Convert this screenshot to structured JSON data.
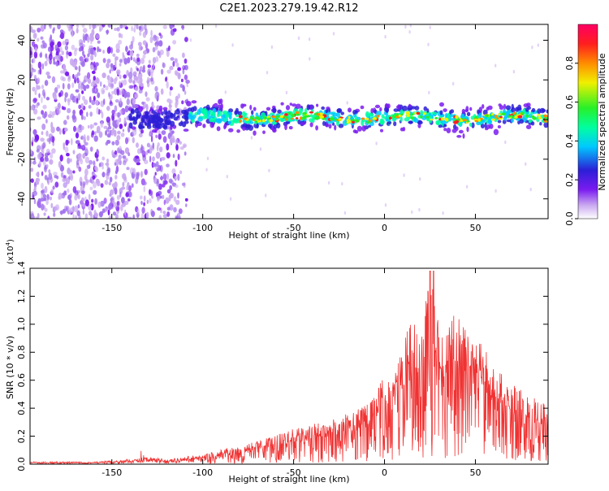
{
  "figure": {
    "title": "C2E1.2023.279.19.42.R12"
  },
  "chart_data": [
    {
      "type": "heatmap",
      "xlabel": "Height of straight line (km)",
      "ylabel": "Frequency (Hz)",
      "xlim": [
        -195,
        90
      ],
      "ylim": [
        -50,
        48
      ],
      "x_ticks": [
        -150,
        -100,
        -50,
        0,
        50
      ],
      "y_ticks": [
        -40,
        -20,
        0,
        20,
        40
      ],
      "grid": false,
      "colorbar": {
        "label": "Normalized spectral amplitude",
        "ticks": [
          0.0,
          0.2,
          0.4,
          0.6,
          0.8
        ],
        "range": [
          0,
          1
        ],
        "colormap": "rainbow (white → violet → blue → cyan → green → yellow → orange → red → magenta)",
        "colors": [
          "#ffffff",
          "#c9a8f0",
          "#7a1cf0",
          "#2b1fd6",
          "#00c8ff",
          "#00ffa0",
          "#28f028",
          "#f0f000",
          "#ff8c00",
          "#ff1e1e",
          "#ff0064"
        ]
      },
      "regions": [
        {
          "label": "scattered noise",
          "x_range": [
            -195,
            -108
          ],
          "frequency_range": [
            -50,
            48
          ]
        },
        {
          "label": "band onset",
          "x_range": [
            -140,
            -108
          ],
          "frequency_center": 0,
          "width_hz": 8
        },
        {
          "label": "signal band",
          "x_range": [
            -108,
            90
          ],
          "frequency_center": 1,
          "width_hz": 6,
          "peak_amplitude": 0.95
        }
      ]
    },
    {
      "type": "line",
      "xlabel": "Height of straight line (km)",
      "ylabel": "SNR (10 * v/v)",
      "y_multiplier": "(x10",
      "y_multiplier_exp": "4",
      "y_multiplier_close": ")",
      "xlim": [
        -195,
        90
      ],
      "ylim": [
        0,
        1.4
      ],
      "x_ticks": [
        -150,
        -100,
        -50,
        0,
        50
      ],
      "y_ticks": [
        0.0,
        0.2,
        0.4,
        0.6,
        0.8,
        1.0,
        1.2,
        1.4
      ],
      "series_color": "#f03232",
      "grid": false,
      "series": [
        {
          "x": [
            -195,
            -180,
            -160,
            -140,
            -130,
            -120,
            -110,
            -100,
            -90,
            -80,
            -70,
            -60,
            -50,
            -40,
            -30,
            -20,
            -10,
            0,
            5,
            10,
            15,
            20,
            25,
            28,
            30,
            35,
            40,
            45,
            50,
            55,
            60,
            70,
            80,
            90
          ],
          "values": [
            0.01,
            0.01,
            0.01,
            0.02,
            0.03,
            0.02,
            0.03,
            0.05,
            0.08,
            0.1,
            0.13,
            0.16,
            0.2,
            0.22,
            0.24,
            0.28,
            0.33,
            0.5,
            0.55,
            0.65,
            0.85,
            0.8,
            1.0,
            0.95,
            0.8,
            0.85,
            0.82,
            0.8,
            0.68,
            0.65,
            0.55,
            0.45,
            0.38,
            0.33
          ],
          "peaks": [
            1.38,
            1.38
          ]
        }
      ]
    }
  ]
}
